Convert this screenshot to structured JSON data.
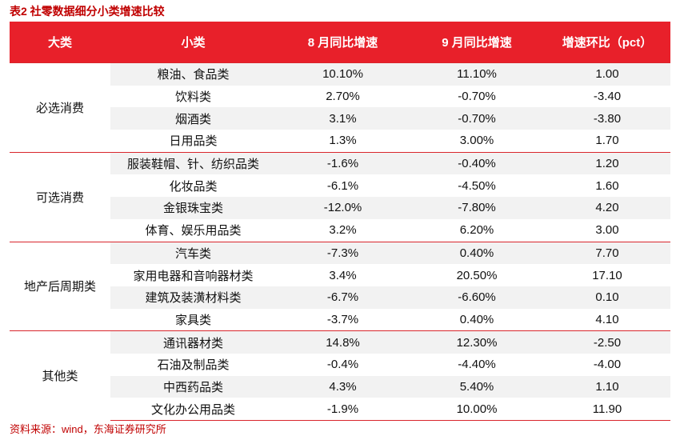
{
  "title": "表2  社零数据细分小类增速比较",
  "table": {
    "header": [
      "大类",
      "小类",
      "8 月同比增速",
      "9 月同比增速",
      "增速环比（pct）"
    ],
    "groups": [
      {
        "name": "必选消费",
        "rows": [
          [
            "粮油、食品类",
            "10.10%",
            "11.10%",
            "1.00"
          ],
          [
            "饮料类",
            "2.70%",
            "-0.70%",
            "-3.40"
          ],
          [
            "烟酒类",
            "3.1%",
            "-0.70%",
            "-3.80"
          ],
          [
            "日用品类",
            "1.3%",
            "3.00%",
            "1.70"
          ]
        ]
      },
      {
        "name": "可选消费",
        "rows": [
          [
            "服装鞋帽、针、纺织品类",
            "-1.6%",
            "-0.40%",
            "1.20"
          ],
          [
            "化妆品类",
            "-6.1%",
            "-4.50%",
            "1.60"
          ],
          [
            "金银珠宝类",
            "-12.0%",
            "-7.80%",
            "4.20"
          ],
          [
            "体育、娱乐用品类",
            "3.2%",
            "6.20%",
            "3.00"
          ]
        ]
      },
      {
        "name": "地产后周期类",
        "rows": [
          [
            "汽车类",
            "-7.3%",
            "0.40%",
            "7.70"
          ],
          [
            "家用电器和音响器材类",
            "3.4%",
            "20.50%",
            "17.10"
          ],
          [
            "建筑及装潢材料类",
            "-6.7%",
            "-6.60%",
            "0.10"
          ],
          [
            "家具类",
            "-3.7%",
            "0.40%",
            "4.10"
          ]
        ]
      },
      {
        "name": "其他类",
        "rows": [
          [
            "通讯器材类",
            "14.8%",
            "12.30%",
            "-2.50"
          ],
          [
            "石油及制品类",
            "-0.4%",
            "-4.40%",
            "-4.00"
          ],
          [
            "中西药品类",
            "4.3%",
            "5.40%",
            "1.10"
          ],
          [
            "文化办公用品类",
            "-1.9%",
            "10.00%",
            "11.90"
          ]
        ]
      }
    ]
  },
  "source": "资料来源：wind，东海证券研究所"
}
